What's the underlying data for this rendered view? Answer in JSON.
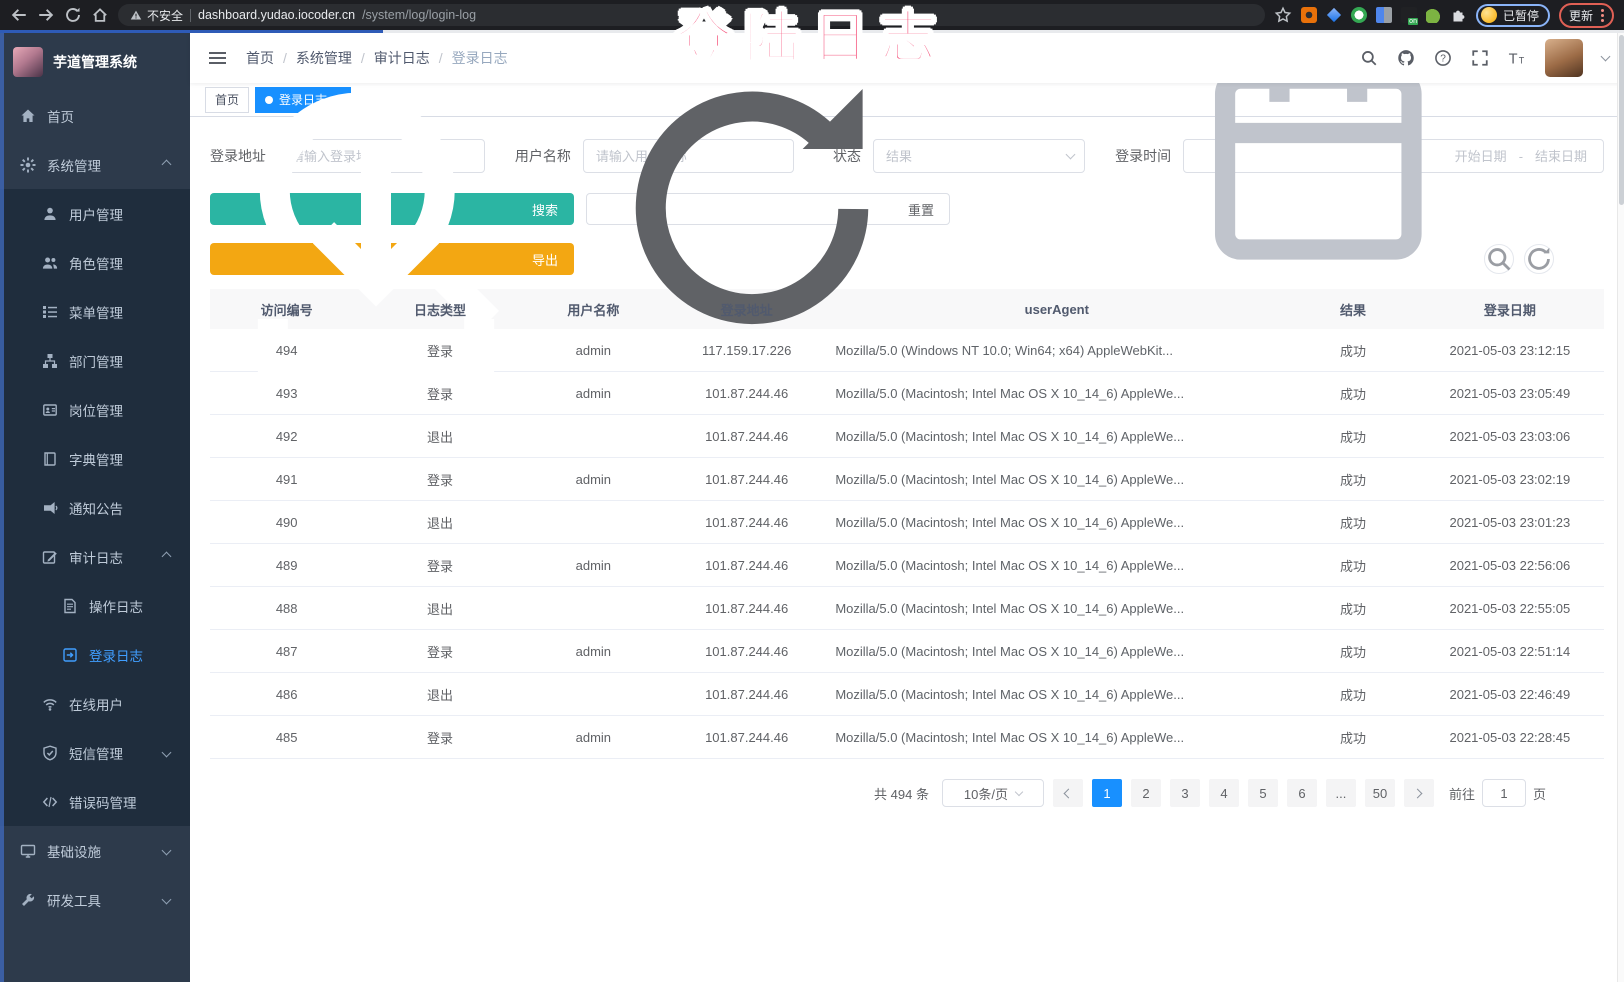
{
  "browser": {
    "security_warning": "不安全",
    "url_host": "dashboard.yudao.iocoder.cn",
    "url_path": "/system/log/login-log",
    "profile_badge": "已暂停",
    "update_button": "更新",
    "toolbar_icons": [
      "back",
      "forward",
      "reload",
      "home",
      "warning",
      "bookmark-star",
      "extensions-puzzle",
      "kebab-menu"
    ]
  },
  "overlay": {
    "text": "登陆日志",
    "color": "#f4426e"
  },
  "sidebar": {
    "logo_title": "芋道管理系统",
    "items": [
      {
        "key": "home",
        "label": "首页",
        "icon": "home",
        "level": 1
      },
      {
        "key": "system",
        "label": "系统管理",
        "icon": "gear",
        "level": 1,
        "arrow": "up"
      },
      {
        "key": "user",
        "label": "用户管理",
        "icon": "user",
        "level": 2
      },
      {
        "key": "role",
        "label": "角色管理",
        "icon": "users",
        "level": 2
      },
      {
        "key": "menu",
        "label": "菜单管理",
        "icon": "menu-tree",
        "level": 2
      },
      {
        "key": "dept",
        "label": "部门管理",
        "icon": "org-tree",
        "level": 2
      },
      {
        "key": "post",
        "label": "岗位管理",
        "icon": "badge",
        "level": 2
      },
      {
        "key": "dict",
        "label": "字典管理",
        "icon": "book",
        "level": 2
      },
      {
        "key": "notice",
        "label": "通知公告",
        "icon": "megaphone",
        "level": 2
      },
      {
        "key": "audit-log",
        "label": "审计日志",
        "icon": "edit",
        "level": 2,
        "arrow": "up"
      },
      {
        "key": "operate-log",
        "label": "操作日志",
        "icon": "doc",
        "level": 3
      },
      {
        "key": "login-log",
        "label": "登录日志",
        "icon": "login",
        "level": 3,
        "active": true
      },
      {
        "key": "online-user",
        "label": "在线用户",
        "icon": "online",
        "level": 2
      },
      {
        "key": "sms",
        "label": "短信管理",
        "icon": "shield-check",
        "level": 2,
        "arrow": "down"
      },
      {
        "key": "errcode",
        "label": "错误码管理",
        "icon": "code",
        "level": 2
      },
      {
        "key": "infra",
        "label": "基础设施",
        "icon": "monitor",
        "level": 1,
        "arrow": "down"
      },
      {
        "key": "devtools",
        "label": "研发工具",
        "icon": "wrench",
        "level": 1,
        "arrow": "down"
      }
    ]
  },
  "navbar": {
    "breadcrumb": [
      "首页",
      "系统管理",
      "审计日志",
      "登录日志"
    ],
    "right_icons": [
      "search",
      "github",
      "help",
      "fullscreen",
      "font-size"
    ]
  },
  "tags": [
    {
      "label": "首页",
      "active": false,
      "closable": false
    },
    {
      "label": "登录日志",
      "active": true,
      "closable": true
    }
  ],
  "filters": {
    "login_address": {
      "label": "登录地址",
      "placeholder": "请输入登录地址"
    },
    "username": {
      "label": "用户名称",
      "placeholder": "请输入用户名称"
    },
    "status": {
      "label": "状态",
      "placeholder": "结果"
    },
    "login_time": {
      "label": "登录时间",
      "start_placeholder": "开始日期",
      "separator": "-",
      "end_placeholder": "结束日期"
    },
    "search_label": "搜索",
    "reset_label": "重置"
  },
  "toolbar": {
    "export_label": "导出",
    "tool_icons": [
      "search",
      "refresh"
    ]
  },
  "table": {
    "columns": [
      "访问编号",
      "日志类型",
      "用户名称",
      "登录地址",
      "userAgent",
      "结果",
      "登录日期"
    ],
    "rows": [
      {
        "id": "494",
        "type": "登录",
        "username": "admin",
        "ip": "117.159.17.226",
        "user_agent": "Mozilla/5.0 (Windows NT 10.0; Win64; x64) AppleWebKit...",
        "result": "成功",
        "date": "2021-05-03 23:12:15"
      },
      {
        "id": "493",
        "type": "登录",
        "username": "admin",
        "ip": "101.87.244.46",
        "user_agent": "Mozilla/5.0 (Macintosh; Intel Mac OS X 10_14_6) AppleWe...",
        "result": "成功",
        "date": "2021-05-03 23:05:49"
      },
      {
        "id": "492",
        "type": "退出",
        "username": "",
        "ip": "101.87.244.46",
        "user_agent": "Mozilla/5.0 (Macintosh; Intel Mac OS X 10_14_6) AppleWe...",
        "result": "成功",
        "date": "2021-05-03 23:03:06"
      },
      {
        "id": "491",
        "type": "登录",
        "username": "admin",
        "ip": "101.87.244.46",
        "user_agent": "Mozilla/5.0 (Macintosh; Intel Mac OS X 10_14_6) AppleWe...",
        "result": "成功",
        "date": "2021-05-03 23:02:19"
      },
      {
        "id": "490",
        "type": "退出",
        "username": "",
        "ip": "101.87.244.46",
        "user_agent": "Mozilla/5.0 (Macintosh; Intel Mac OS X 10_14_6) AppleWe...",
        "result": "成功",
        "date": "2021-05-03 23:01:23"
      },
      {
        "id": "489",
        "type": "登录",
        "username": "admin",
        "ip": "101.87.244.46",
        "user_agent": "Mozilla/5.0 (Macintosh; Intel Mac OS X 10_14_6) AppleWe...",
        "result": "成功",
        "date": "2021-05-03 22:56:06"
      },
      {
        "id": "488",
        "type": "退出",
        "username": "",
        "ip": "101.87.244.46",
        "user_agent": "Mozilla/5.0 (Macintosh; Intel Mac OS X 10_14_6) AppleWe...",
        "result": "成功",
        "date": "2021-05-03 22:55:05"
      },
      {
        "id": "487",
        "type": "登录",
        "username": "admin",
        "ip": "101.87.244.46",
        "user_agent": "Mozilla/5.0 (Macintosh; Intel Mac OS X 10_14_6) AppleWe...",
        "result": "成功",
        "date": "2021-05-03 22:51:14"
      },
      {
        "id": "486",
        "type": "退出",
        "username": "",
        "ip": "101.87.244.46",
        "user_agent": "Mozilla/5.0 (Macintosh; Intel Mac OS X 10_14_6) AppleWe...",
        "result": "成功",
        "date": "2021-05-03 22:46:49"
      },
      {
        "id": "485",
        "type": "登录",
        "username": "admin",
        "ip": "101.87.244.46",
        "user_agent": "Mozilla/5.0 (Macintosh; Intel Mac OS X 10_14_6) AppleWe...",
        "result": "成功",
        "date": "2021-05-03 22:28:45"
      }
    ]
  },
  "pagination": {
    "total_text": "共 494 条",
    "page_size": "10条/页",
    "pages": [
      "1",
      "2",
      "3",
      "4",
      "5",
      "6",
      "...",
      "50"
    ],
    "active_page": "1",
    "goto_label": "前往",
    "goto_value": "1",
    "goto_suffix": "页"
  },
  "colors": {
    "accent_blue": "#1890ff",
    "sidebar_active": "#409eff",
    "search_button": "#2bb5a3",
    "export_button": "#f3a712",
    "overlay_pink": "#f4426e",
    "sidebar_bg": "#2d3a4b",
    "submenu_bg": "#1f2d3d"
  }
}
